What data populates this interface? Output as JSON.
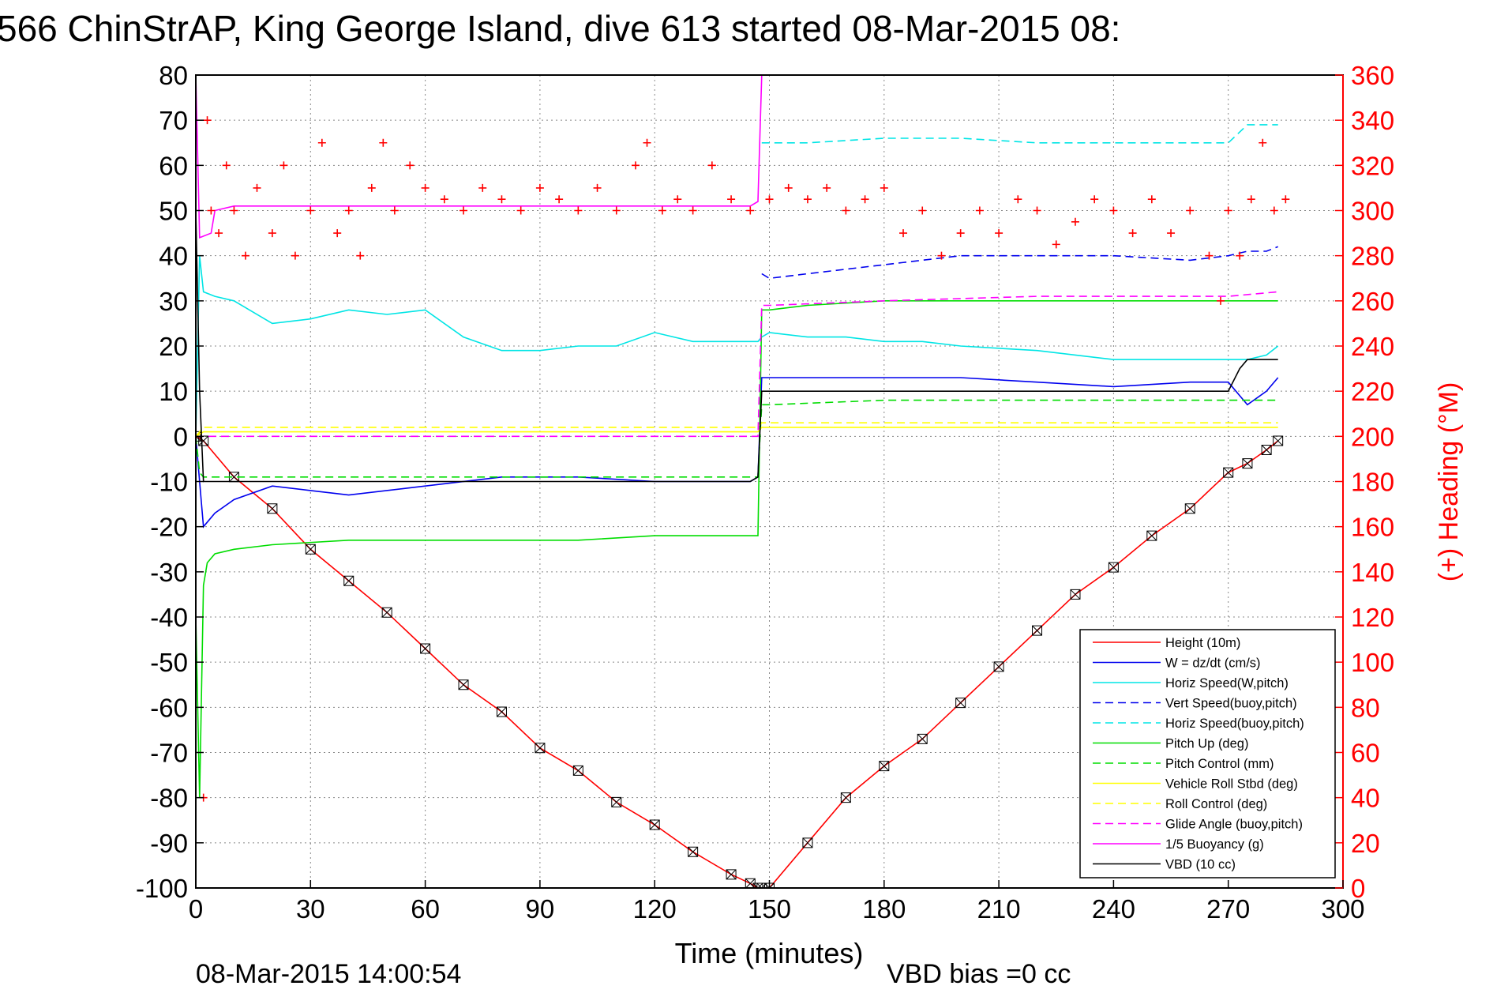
{
  "chart_data": {
    "type": "line",
    "title": "566 ChinStrAP, King George Island, dive 613 started 08-Mar-2015 08:",
    "xlabel": "Time (minutes)",
    "ylabel": "",
    "y2label": "(+) Heading (°M)",
    "xlim": [
      0,
      300
    ],
    "ylim": [
      -100,
      80
    ],
    "y2lim": [
      0,
      360
    ],
    "xticks": [
      "0",
      "30",
      "60",
      "90",
      "120",
      "150",
      "180",
      "210",
      "240",
      "270",
      "300"
    ],
    "yticks": [
      "80",
      "70",
      "60",
      "50",
      "40",
      "30",
      "20",
      "10",
      "0",
      "-10",
      "-20",
      "-30",
      "-40",
      "-50",
      "-60",
      "-70",
      "-80",
      "-90",
      "-100"
    ],
    "y2ticks": [
      "360",
      "340",
      "320",
      "300",
      "280",
      "260",
      "240",
      "220",
      "200",
      "180",
      "160",
      "140",
      "120",
      "100",
      "80",
      "60",
      "40",
      "20",
      "0"
    ],
    "grid": true,
    "legend_position": "bottom-right",
    "footer_left": "08-Mar-2015 14:00:54",
    "footer_right": "VBD bias =0 cc",
    "series": [
      {
        "name": "Height (10m)",
        "color": "#ff0000",
        "dash": "solid",
        "marker": "box-x",
        "x": [
          0,
          2,
          10,
          20,
          30,
          40,
          50,
          60,
          70,
          80,
          90,
          100,
          110,
          120,
          130,
          140,
          145,
          147,
          148,
          150,
          160,
          170,
          180,
          190,
          200,
          210,
          220,
          230,
          240,
          250,
          260,
          270,
          275,
          280,
          283
        ],
        "y": [
          0,
          -1,
          -9,
          -16,
          -25,
          -32,
          -39,
          -47,
          -55,
          -61,
          -69,
          -74,
          -81,
          -86,
          -92,
          -97,
          -99,
          -100,
          -100,
          -100,
          -90,
          -80,
          -73,
          -67,
          -59,
          -51,
          -43,
          -35,
          -29,
          -22,
          -16,
          -8,
          -6,
          -3,
          -1
        ]
      },
      {
        "name": "W = dz/dt (cm/s)",
        "color": "#0000ee",
        "dash": "solid",
        "x": [
          0,
          1,
          2,
          5,
          10,
          20,
          30,
          40,
          60,
          80,
          100,
          120,
          140,
          145,
          147,
          148,
          150,
          160,
          170,
          180,
          190,
          200,
          220,
          240,
          260,
          270,
          275,
          280,
          283
        ],
        "y": [
          0,
          -10,
          -20,
          -17,
          -14,
          -11,
          -12,
          -13,
          -11,
          -9,
          -9,
          -10,
          -10,
          -10,
          -9,
          13,
          13,
          13,
          13,
          13,
          13,
          13,
          12,
          11,
          12,
          12,
          7,
          10,
          13
        ]
      },
      {
        "name": "Horiz Speed(W,pitch)",
        "color": "#00e5e5",
        "dash": "solid",
        "x": [
          0,
          1,
          2,
          5,
          10,
          20,
          30,
          40,
          50,
          60,
          70,
          80,
          90,
          100,
          110,
          120,
          130,
          140,
          145,
          147,
          148,
          150,
          160,
          170,
          180,
          190,
          200,
          220,
          240,
          260,
          270,
          275,
          280,
          283
        ],
        "y": [
          0,
          40,
          32,
          31,
          30,
          25,
          26,
          28,
          27,
          28,
          22,
          19,
          19,
          20,
          20,
          23,
          21,
          21,
          21,
          21,
          22,
          23,
          22,
          22,
          21,
          21,
          20,
          19,
          17,
          17,
          17,
          17,
          18,
          20
        ]
      },
      {
        "name": "Vert Speed(buoy,pitch)",
        "color": "#0000ee",
        "dash": "dashed",
        "x": [
          148,
          150,
          160,
          180,
          200,
          220,
          240,
          260,
          270,
          275,
          280,
          283
        ],
        "y": [
          36,
          35,
          36,
          38,
          40,
          40,
          40,
          39,
          40,
          41,
          41,
          42
        ]
      },
      {
        "name": "Horiz Speed(buoy,pitch)",
        "color": "#00e5e5",
        "dash": "dashed",
        "x": [
          148,
          150,
          160,
          180,
          200,
          220,
          240,
          260,
          270,
          275,
          280,
          283
        ],
        "y": [
          65,
          65,
          65,
          66,
          66,
          65,
          65,
          65,
          65,
          69,
          69,
          69
        ]
      },
      {
        "name": "Pitch Up (deg)",
        "color": "#00dd00",
        "dash": "solid",
        "x": [
          0,
          1,
          2,
          3,
          5,
          10,
          20,
          40,
          60,
          80,
          100,
          120,
          140,
          145,
          147,
          148,
          150,
          160,
          180,
          200,
          220,
          240,
          260,
          270,
          280,
          283
        ],
        "y": [
          -40,
          -80,
          -33,
          -28,
          -26,
          -25,
          -24,
          -23,
          -23,
          -23,
          -23,
          -22,
          -22,
          -22,
          -22,
          28,
          28,
          29,
          30,
          30,
          30,
          30,
          30,
          30,
          30,
          30
        ]
      },
      {
        "name": "Pitch Control (mm)",
        "color": "#00dd00",
        "dash": "dashed",
        "x": [
          0,
          1,
          2,
          3,
          10,
          40,
          80,
          120,
          145,
          147,
          148,
          150,
          180,
          220,
          260,
          283
        ],
        "y": [
          0,
          -8,
          -9,
          -9,
          -9,
          -9,
          -9,
          -9,
          -9,
          -9,
          7,
          7,
          8,
          8,
          8,
          8
        ]
      },
      {
        "name": "Vehicle Roll Stbd (deg)",
        "color": "#ffff00",
        "dash": "solid",
        "x": [
          0,
          2,
          10,
          30,
          60,
          90,
          120,
          147,
          148,
          180,
          220,
          260,
          280,
          283
        ],
        "y": [
          0,
          1,
          1,
          1,
          1,
          1,
          1,
          1,
          2,
          2,
          2,
          2,
          2,
          2
        ]
      },
      {
        "name": "Roll Control (deg)",
        "color": "#ffff00",
        "dash": "dashed",
        "x": [
          0,
          2,
          30,
          60,
          90,
          120,
          147,
          148,
          180,
          220,
          260,
          283
        ],
        "y": [
          0,
          2,
          2,
          2,
          2,
          2,
          2,
          3,
          3,
          3,
          3,
          3
        ]
      },
      {
        "name": "Glide Angle (buoy,pitch)",
        "color": "#ff00ff",
        "dash": "dashed",
        "x": [
          0,
          147,
          148,
          150,
          180,
          220,
          260,
          270,
          283
        ],
        "y": [
          0,
          0,
          29,
          29,
          30,
          31,
          31,
          31,
          32
        ]
      },
      {
        "name": "1/5 Buoyancy (g)",
        "color": "#ff00ff",
        "dash": "solid",
        "x": [
          0,
          1,
          4,
          5,
          10,
          30,
          60,
          90,
          120,
          145,
          147,
          148
        ],
        "y": [
          80,
          44,
          45,
          50,
          51,
          51,
          51,
          51,
          51,
          51,
          52,
          80
        ]
      },
      {
        "name": "VBD (10 cc)",
        "color": "#000000",
        "dash": "solid",
        "x": [
          0,
          1,
          2,
          3,
          10,
          40,
          80,
          120,
          145,
          147,
          148,
          150,
          180,
          220,
          260,
          270,
          273,
          275,
          283
        ],
        "y": [
          50,
          10,
          -10,
          -10,
          -10,
          -10,
          -10,
          -10,
          -10,
          -9,
          10,
          10,
          10,
          10,
          10,
          10,
          15,
          17,
          17
        ]
      },
      {
        "name": "(+) Heading (°M)",
        "color": "#ff0000",
        "axis": "right",
        "marker": "plus",
        "x": [
          2,
          3,
          4,
          6,
          8,
          10,
          13,
          16,
          20,
          23,
          26,
          30,
          33,
          37,
          40,
          43,
          46,
          49,
          52,
          56,
          60,
          65,
          70,
          75,
          80,
          85,
          90,
          95,
          100,
          105,
          110,
          115,
          118,
          122,
          126,
          130,
          135,
          140,
          145,
          150,
          155,
          160,
          165,
          170,
          175,
          180,
          185,
          190,
          195,
          200,
          205,
          210,
          215,
          220,
          225,
          230,
          235,
          240,
          245,
          250,
          255,
          260,
          265,
          268,
          270,
          273,
          276,
          279,
          282,
          285
        ],
        "y": [
          40,
          340,
          300,
          290,
          320,
          300,
          280,
          310,
          290,
          320,
          280,
          300,
          330,
          290,
          300,
          280,
          310,
          330,
          300,
          320,
          310,
          305,
          300,
          310,
          305,
          300,
          310,
          305,
          300,
          310,
          300,
          320,
          330,
          300,
          305,
          300,
          320,
          305,
          300,
          305,
          310,
          305,
          310,
          300,
          305,
          310,
          290,
          300,
          280,
          290,
          300,
          290,
          305,
          300,
          285,
          295,
          305,
          300,
          290,
          305,
          290,
          300,
          280,
          260,
          300,
          280,
          305,
          330,
          300,
          305
        ]
      }
    ]
  }
}
